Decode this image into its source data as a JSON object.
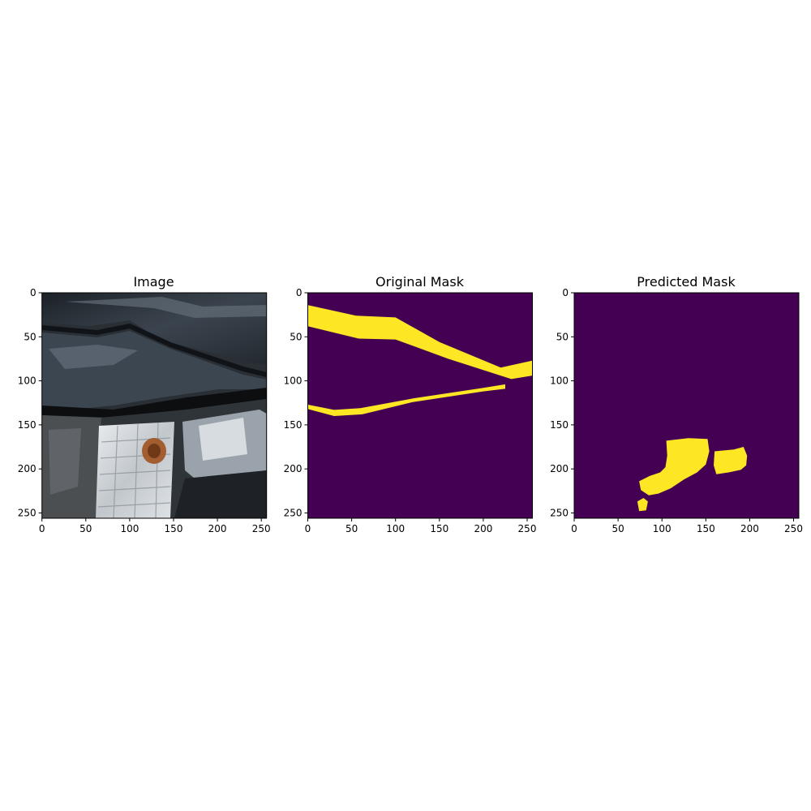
{
  "chart_data": [
    {
      "type": "image",
      "title": "Image",
      "xlim": [
        0,
        256
      ],
      "ylim": [
        256,
        0
      ],
      "x_ticks": [
        0,
        50,
        100,
        150,
        200,
        250
      ],
      "y_ticks": [
        0,
        50,
        100,
        150,
        200,
        250
      ],
      "content": "photo"
    },
    {
      "type": "heatmap",
      "title": "Original Mask",
      "xlim": [
        0,
        256
      ],
      "ylim": [
        256,
        0
      ],
      "x_ticks": [
        0,
        50,
        100,
        150,
        200,
        250
      ],
      "y_ticks": [
        0,
        50,
        100,
        150,
        200,
        250
      ],
      "background_color": "#440154",
      "mask_color": "#fde725",
      "regions": [
        [
          [
            0,
            14
          ],
          [
            55,
            26
          ],
          [
            100,
            28
          ],
          [
            150,
            56
          ],
          [
            220,
            85
          ],
          [
            256,
            77
          ],
          [
            256,
            94
          ],
          [
            232,
            98
          ],
          [
            160,
            75
          ],
          [
            100,
            53
          ],
          [
            58,
            52
          ],
          [
            0,
            38
          ]
        ],
        [
          [
            0,
            127
          ],
          [
            30,
            133
          ],
          [
            60,
            131
          ],
          [
            120,
            120
          ],
          [
            200,
            108
          ],
          [
            225,
            104
          ],
          [
            225,
            109
          ],
          [
            200,
            112
          ],
          [
            120,
            124
          ],
          [
            62,
            138
          ],
          [
            30,
            140
          ],
          [
            0,
            132
          ]
        ]
      ]
    },
    {
      "type": "heatmap",
      "title": "Predicted Mask",
      "xlim": [
        0,
        256
      ],
      "ylim": [
        256,
        0
      ],
      "x_ticks": [
        0,
        50,
        100,
        150,
        200,
        250
      ],
      "y_ticks": [
        0,
        50,
        100,
        150,
        200,
        250
      ],
      "background_color": "#440154",
      "mask_color": "#fde725",
      "regions": [
        [
          [
            105,
            168
          ],
          [
            130,
            165
          ],
          [
            152,
            166
          ],
          [
            154,
            180
          ],
          [
            150,
            195
          ],
          [
            140,
            204
          ],
          [
            125,
            212
          ],
          [
            110,
            222
          ],
          [
            96,
            228
          ],
          [
            85,
            230
          ],
          [
            76,
            224
          ],
          [
            74,
            214
          ],
          [
            86,
            208
          ],
          [
            98,
            204
          ],
          [
            104,
            198
          ],
          [
            106,
            185
          ]
        ],
        [
          [
            160,
            180
          ],
          [
            182,
            178
          ],
          [
            193,
            175
          ],
          [
            197,
            185
          ],
          [
            196,
            196
          ],
          [
            190,
            201
          ],
          [
            176,
            204
          ],
          [
            162,
            206
          ],
          [
            159,
            196
          ]
        ],
        [
          [
            72,
            237
          ],
          [
            79,
            233
          ],
          [
            84,
            237
          ],
          [
            82,
            247
          ],
          [
            74,
            248
          ]
        ]
      ]
    }
  ]
}
